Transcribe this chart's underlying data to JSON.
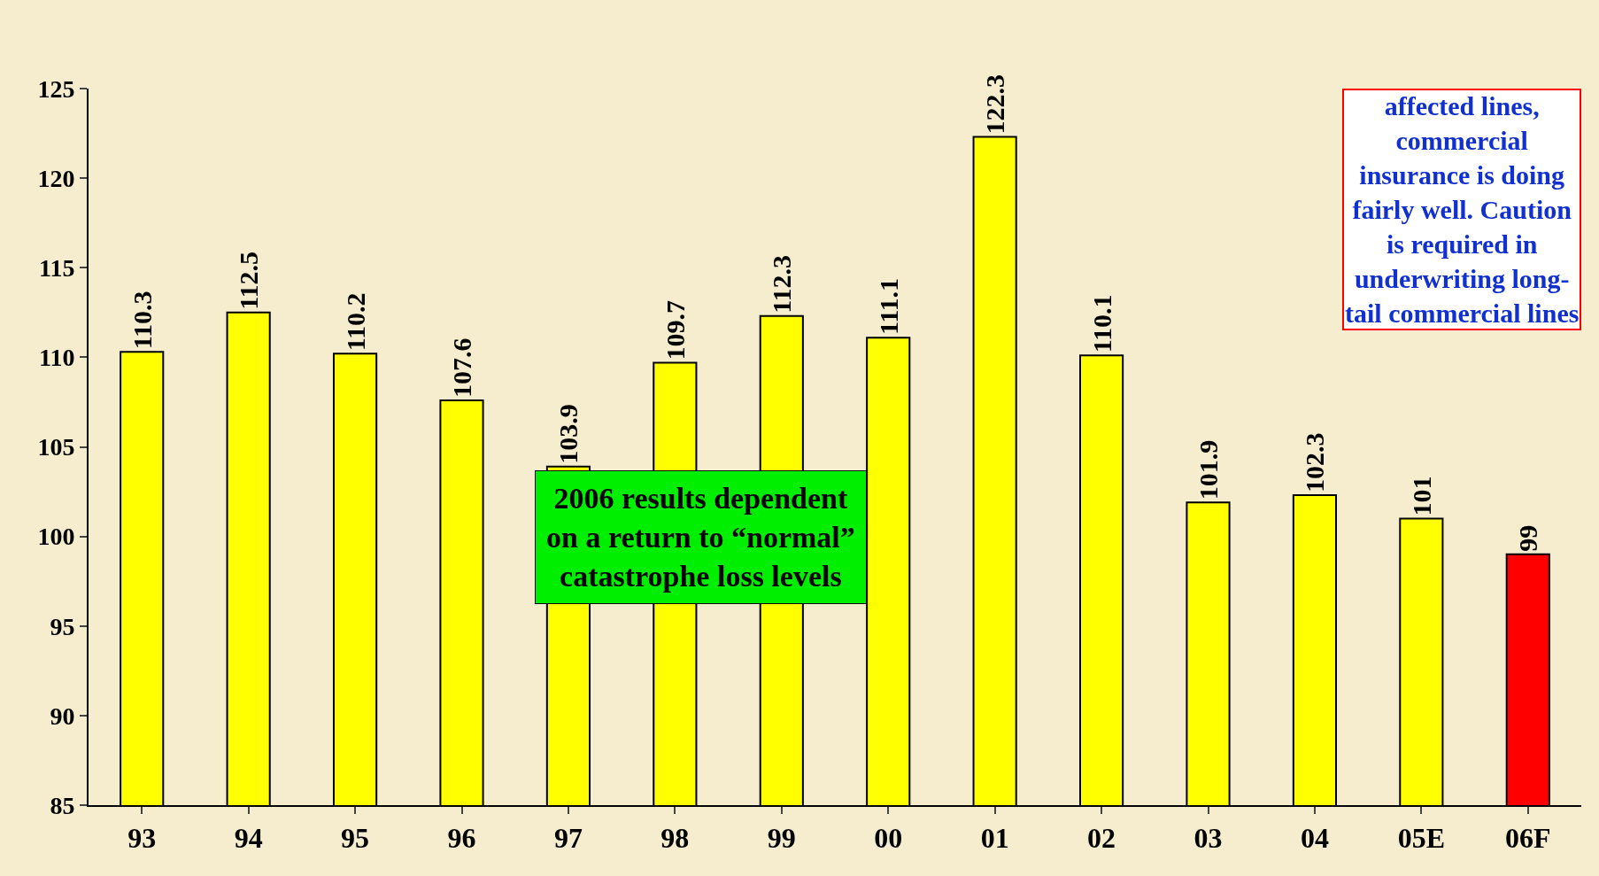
{
  "chart_data": {
    "type": "bar",
    "categories": [
      "93",
      "94",
      "95",
      "96",
      "97",
      "98",
      "99",
      "00",
      "01",
      "02",
      "03",
      "04",
      "05E",
      "06F"
    ],
    "values": [
      110.3,
      112.5,
      110.2,
      107.6,
      103.9,
      109.7,
      112.3,
      111.1,
      122.3,
      110.1,
      101.9,
      102.3,
      101,
      99
    ],
    "colors": [
      "#ffff00",
      "#ffff00",
      "#ffff00",
      "#ffff00",
      "#ffff00",
      "#ffff00",
      "#ffff00",
      "#ffff00",
      "#ffff00",
      "#ffff00",
      "#ffff00",
      "#ffff00",
      "#ffff00",
      "#ff0000"
    ],
    "ylim": [
      85,
      125
    ],
    "yticks": [
      85,
      90,
      95,
      100,
      105,
      110,
      115,
      120,
      125
    ],
    "data_labels": true,
    "grid": false,
    "legend": false,
    "annotations": [
      "2006 results dependent\non a return to “normal”\ncatastrophe loss levels",
      "affected lines,\ncommercial\ninsurance is doing\nfairly well. Caution\nis required in\nunderwriting long-\ntail commercial lines"
    ]
  }
}
